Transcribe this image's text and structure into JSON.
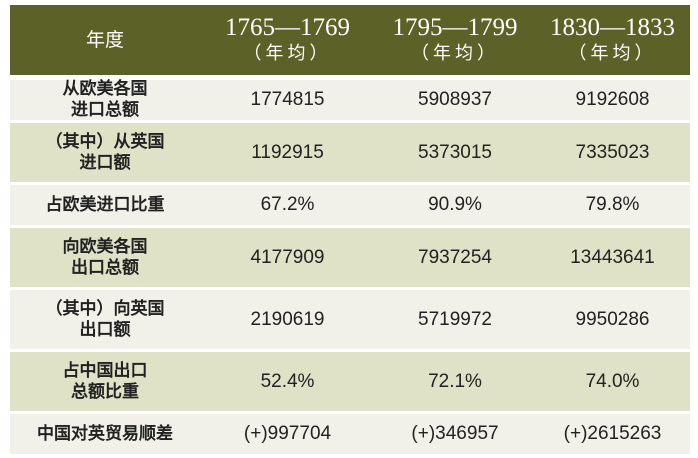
{
  "header": {
    "label": "年度",
    "columns": [
      {
        "years": "1765—1769",
        "note": "（年均）"
      },
      {
        "years": "1795—1799",
        "note": "（年均）"
      },
      {
        "years": "1830—1833",
        "note": "（年均）"
      }
    ]
  },
  "rows": [
    {
      "label": [
        "从欧美各国",
        "进口总额"
      ],
      "values": [
        "1774815",
        "5908937",
        "9192608"
      ]
    },
    {
      "label": [
        "（其中）从英国",
        "进口额"
      ],
      "values": [
        "1192915",
        "5373015",
        "7335023"
      ]
    },
    {
      "label": [
        "占欧美进口比重"
      ],
      "values": [
        "67.2%",
        "90.9%",
        "79.8%"
      ]
    },
    {
      "label": [
        "向欧美各国",
        "出口总额"
      ],
      "values": [
        "4177909",
        "7937254",
        "13443641"
      ]
    },
    {
      "label": [
        "（其中）向英国",
        "出口额"
      ],
      "values": [
        "2190619",
        "5719972",
        "9950286"
      ]
    },
    {
      "label": [
        "占中国出口",
        "总额比重"
      ],
      "values": [
        "52.4%",
        "72.1%",
        "74.0%"
      ]
    },
    {
      "label": [
        "中国对英贸易顺差"
      ],
      "values": [
        "(+)997704",
        "(+)346957",
        "(+)2615263"
      ]
    }
  ],
  "colors": {
    "header": "#5c6127",
    "row_light": "#f1f1ea",
    "row_green": "#dfe2c6"
  }
}
